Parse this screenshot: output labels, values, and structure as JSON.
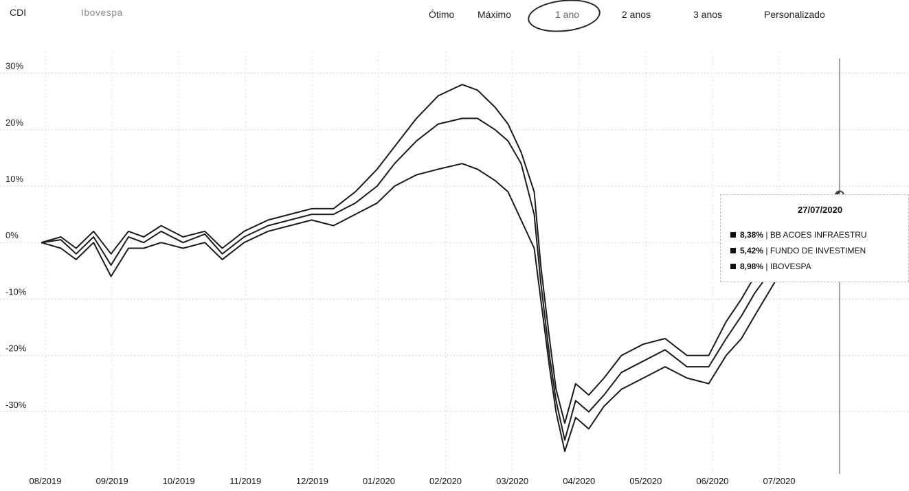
{
  "header": {
    "compare_tags": [
      "CDI",
      "Ibovespa"
    ],
    "periods": [
      "Ótimo",
      "Máximo",
      "1 ano",
      "2 anos",
      "3 anos",
      "Personalizado"
    ],
    "active_period": "1 ano"
  },
  "tooltip": {
    "date": "27/07/2020",
    "rows": [
      {
        "value": "8,38%",
        "name": "BB ACOES INFRAESTRU"
      },
      {
        "value": "5,42%",
        "name": "FUNDO DE INVESTIMEN"
      },
      {
        "value": "8,98%",
        "name": "IBOVESPA"
      }
    ]
  },
  "chart_data": {
    "type": "line",
    "x_labels": [
      "08/2019",
      "09/2019",
      "10/2019",
      "11/2019",
      "12/2019",
      "01/2020",
      "02/2020",
      "03/2020",
      "04/2020",
      "05/2020",
      "06/2020",
      "07/2020"
    ],
    "y_ticks": [
      30,
      20,
      10,
      0,
      -10,
      -20,
      -30
    ],
    "y_tick_labels": [
      "30%",
      "20%",
      "10%",
      "0%",
      "-10%",
      "-20%",
      "-30%"
    ],
    "ylim": [
      -40,
      33
    ],
    "x_range": [
      "2019-07-27",
      "2020-07-27"
    ],
    "series": [
      {
        "name": "BB ACOES INFRAESTRU",
        "color": "#1a1a1a",
        "points": [
          [
            "2019-07-27",
            0
          ],
          [
            "2019-08-05",
            0.5
          ],
          [
            "2019-08-12",
            -2
          ],
          [
            "2019-08-20",
            1
          ],
          [
            "2019-08-28",
            -4
          ],
          [
            "2019-09-05",
            1
          ],
          [
            "2019-09-12",
            0
          ],
          [
            "2019-09-20",
            2
          ],
          [
            "2019-09-30",
            0
          ],
          [
            "2019-10-10",
            1.5
          ],
          [
            "2019-10-18",
            -2
          ],
          [
            "2019-10-28",
            1
          ],
          [
            "2019-11-08",
            3
          ],
          [
            "2019-11-18",
            4
          ],
          [
            "2019-11-28",
            5
          ],
          [
            "2019-12-08",
            5
          ],
          [
            "2019-12-18",
            7
          ],
          [
            "2019-12-28",
            10
          ],
          [
            "2020-01-05",
            14
          ],
          [
            "2020-01-15",
            18
          ],
          [
            "2020-01-25",
            21
          ],
          [
            "2020-02-05",
            22
          ],
          [
            "2020-02-12",
            22
          ],
          [
            "2020-02-20",
            20
          ],
          [
            "2020-02-26",
            18
          ],
          [
            "2020-03-03",
            14
          ],
          [
            "2020-03-09",
            5
          ],
          [
            "2020-03-12",
            -7
          ],
          [
            "2020-03-16",
            -20
          ],
          [
            "2020-03-19",
            -28
          ],
          [
            "2020-03-23",
            -35
          ],
          [
            "2020-03-28",
            -28
          ],
          [
            "2020-04-03",
            -30
          ],
          [
            "2020-04-10",
            -27
          ],
          [
            "2020-04-18",
            -23
          ],
          [
            "2020-04-28",
            -21
          ],
          [
            "2020-05-08",
            -19
          ],
          [
            "2020-05-18",
            -22
          ],
          [
            "2020-05-28",
            -22
          ],
          [
            "2020-06-05",
            -17
          ],
          [
            "2020-06-12",
            -13
          ],
          [
            "2020-06-18",
            -9
          ],
          [
            "2020-07-05",
            0
          ],
          [
            "2020-07-15",
            4
          ],
          [
            "2020-07-27",
            8.38
          ]
        ]
      },
      {
        "name": "FUNDO DE INVESTIMEN",
        "color": "#1a1a1a",
        "points": [
          [
            "2019-07-27",
            0
          ],
          [
            "2019-08-05",
            -1
          ],
          [
            "2019-08-12",
            -3
          ],
          [
            "2019-08-20",
            0
          ],
          [
            "2019-08-28",
            -6
          ],
          [
            "2019-09-05",
            -1
          ],
          [
            "2019-09-12",
            -1
          ],
          [
            "2019-09-20",
            0
          ],
          [
            "2019-09-30",
            -1
          ],
          [
            "2019-10-10",
            0
          ],
          [
            "2019-10-18",
            -3
          ],
          [
            "2019-10-28",
            0
          ],
          [
            "2019-11-08",
            2
          ],
          [
            "2019-11-18",
            3
          ],
          [
            "2019-11-28",
            4
          ],
          [
            "2019-12-08",
            3
          ],
          [
            "2019-12-18",
            5
          ],
          [
            "2019-12-28",
            7
          ],
          [
            "2020-01-05",
            10
          ],
          [
            "2020-01-15",
            12
          ],
          [
            "2020-01-25",
            13
          ],
          [
            "2020-02-05",
            14
          ],
          [
            "2020-02-12",
            13
          ],
          [
            "2020-02-20",
            11
          ],
          [
            "2020-02-26",
            9
          ],
          [
            "2020-03-03",
            4
          ],
          [
            "2020-03-09",
            -1
          ],
          [
            "2020-03-12",
            -10
          ],
          [
            "2020-03-16",
            -22
          ],
          [
            "2020-03-19",
            -30
          ],
          [
            "2020-03-23",
            -37
          ],
          [
            "2020-03-28",
            -31
          ],
          [
            "2020-04-03",
            -33
          ],
          [
            "2020-04-10",
            -29
          ],
          [
            "2020-04-18",
            -26
          ],
          [
            "2020-04-28",
            -24
          ],
          [
            "2020-05-08",
            -22
          ],
          [
            "2020-05-18",
            -24
          ],
          [
            "2020-05-28",
            -25
          ],
          [
            "2020-06-05",
            -20
          ],
          [
            "2020-06-12",
            -17
          ],
          [
            "2020-06-18",
            -13
          ],
          [
            "2020-07-05",
            -2
          ],
          [
            "2020-07-15",
            2
          ],
          [
            "2020-07-27",
            5.42
          ]
        ]
      },
      {
        "name": "IBOVESPA",
        "color": "#1a1a1a",
        "points": [
          [
            "2019-07-27",
            0
          ],
          [
            "2019-08-05",
            1
          ],
          [
            "2019-08-12",
            -1
          ],
          [
            "2019-08-20",
            2
          ],
          [
            "2019-08-28",
            -2
          ],
          [
            "2019-09-05",
            2
          ],
          [
            "2019-09-12",
            1
          ],
          [
            "2019-09-20",
            3
          ],
          [
            "2019-09-30",
            1
          ],
          [
            "2019-10-10",
            2
          ],
          [
            "2019-10-18",
            -1
          ],
          [
            "2019-10-28",
            2
          ],
          [
            "2019-11-08",
            4
          ],
          [
            "2019-11-18",
            5
          ],
          [
            "2019-11-28",
            6
          ],
          [
            "2019-12-08",
            6
          ],
          [
            "2019-12-18",
            9
          ],
          [
            "2019-12-28",
            13
          ],
          [
            "2020-01-05",
            17
          ],
          [
            "2020-01-15",
            22
          ],
          [
            "2020-01-25",
            26
          ],
          [
            "2020-02-05",
            28
          ],
          [
            "2020-02-12",
            27
          ],
          [
            "2020-02-20",
            24
          ],
          [
            "2020-02-26",
            21
          ],
          [
            "2020-03-03",
            16
          ],
          [
            "2020-03-09",
            9
          ],
          [
            "2020-03-12",
            -4
          ],
          [
            "2020-03-16",
            -17
          ],
          [
            "2020-03-19",
            -26
          ],
          [
            "2020-03-23",
            -32
          ],
          [
            "2020-03-28",
            -25
          ],
          [
            "2020-04-03",
            -27
          ],
          [
            "2020-04-10",
            -24
          ],
          [
            "2020-04-18",
            -20
          ],
          [
            "2020-04-28",
            -18
          ],
          [
            "2020-05-08",
            -17
          ],
          [
            "2020-05-18",
            -20
          ],
          [
            "2020-05-28",
            -20
          ],
          [
            "2020-06-05",
            -14
          ],
          [
            "2020-06-12",
            -10
          ],
          [
            "2020-06-18",
            -6
          ],
          [
            "2020-07-05",
            1
          ],
          [
            "2020-07-15",
            5
          ],
          [
            "2020-07-27",
            8.98
          ]
        ]
      }
    ]
  }
}
